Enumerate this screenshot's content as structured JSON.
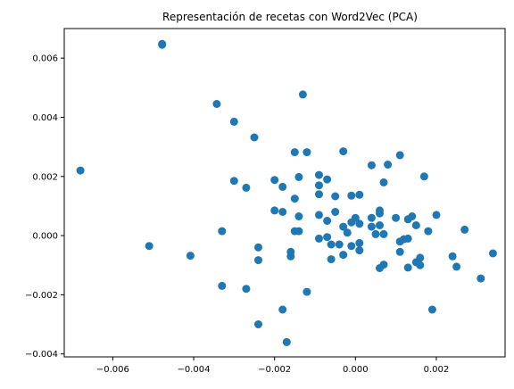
{
  "chart_data": {
    "type": "scatter",
    "title": "Representación de recetas con Word2Vec (PCA)",
    "xlabel": "",
    "ylabel": "",
    "xlim": [
      -0.0072,
      0.0037
    ],
    "ylim": [
      -0.0041,
      0.007
    ],
    "xticks": [
      -0.006,
      -0.004,
      -0.002,
      0.0,
      0.002
    ],
    "xtick_labels": [
      "−0.006",
      "−0.004",
      "−0.002",
      "0.000",
      "0.002"
    ],
    "yticks": [
      -0.004,
      -0.002,
      0.0,
      0.002,
      0.004,
      0.006
    ],
    "ytick_labels": [
      "−0.004",
      "−0.002",
      "0.000",
      "0.002",
      "0.004",
      "0.006"
    ],
    "grid": false,
    "marker_color": "#1f77b4",
    "points": [
      [
        -0.00478,
        0.00648
      ],
      [
        -0.00478,
        0.00645
      ],
      [
        -0.0068,
        0.0022
      ],
      [
        -0.0051,
        -0.00035
      ],
      [
        -0.00408,
        -0.00068
      ],
      [
        -0.00343,
        0.00445
      ],
      [
        -0.003,
        0.00385
      ],
      [
        -0.0025,
        0.00332
      ],
      [
        -0.0013,
        0.00477
      ],
      [
        -0.0003,
        0.00285
      ],
      [
        -0.0033,
        0.00015
      ],
      [
        -0.0033,
        -0.0017
      ],
      [
        -0.003,
        0.00185
      ],
      [
        -0.0027,
        0.00162
      ],
      [
        -0.0027,
        -0.0018
      ],
      [
        -0.0024,
        -0.0004
      ],
      [
        -0.0024,
        -0.00083
      ],
      [
        -0.0024,
        -0.003
      ],
      [
        -0.002,
        0.00188
      ],
      [
        -0.002,
        0.00085
      ],
      [
        -0.0018,
        0.00165
      ],
      [
        -0.0018,
        0.0008
      ],
      [
        -0.0018,
        -0.0025
      ],
      [
        -0.0017,
        -0.0036
      ],
      [
        -0.0016,
        -0.0007
      ],
      [
        -0.0016,
        -0.00055
      ],
      [
        -0.0015,
        0.00282
      ],
      [
        -0.0015,
        0.00125
      ],
      [
        -0.0015,
        0.00015
      ],
      [
        -0.0014,
        0.00198
      ],
      [
        -0.0014,
        0.00065
      ],
      [
        -0.0014,
        0.00015
      ],
      [
        -0.0012,
        0.00282
      ],
      [
        -0.0012,
        -0.0019
      ],
      [
        -0.0009,
        0.00205
      ],
      [
        -0.0009,
        0.0017
      ],
      [
        -0.0009,
        0.0014
      ],
      [
        -0.0009,
        0.0007
      ],
      [
        -0.0009,
        -0.0001
      ],
      [
        -0.0007,
        0.0019
      ],
      [
        -0.0007,
        0.0005
      ],
      [
        -0.0007,
        -5e-05
      ],
      [
        -0.0006,
        -0.0003
      ],
      [
        -0.0006,
        -0.0008
      ],
      [
        -0.0005,
        0.00133
      ],
      [
        -0.0005,
        0.0008
      ],
      [
        -0.0004,
        -0.0003
      ],
      [
        -0.0003,
        0.0003
      ],
      [
        -0.0003,
        -0.00065
      ],
      [
        -0.0002,
        0.0001
      ],
      [
        -0.0001,
        0.00135
      ],
      [
        -0.0001,
        0.00045
      ],
      [
        -0.0001,
        -0.00035
      ],
      [
        0.0,
        0.0006
      ],
      [
        0.0001,
        0.00138
      ],
      [
        0.0001,
        0.0004
      ],
      [
        0.0001,
        -0.00025
      ],
      [
        0.0001,
        -0.0005
      ],
      [
        0.0004,
        0.00238
      ],
      [
        0.0004,
        0.0006
      ],
      [
        0.0004,
        0.0003
      ],
      [
        0.0005,
        5e-05
      ],
      [
        0.0006,
        0.00085
      ],
      [
        0.0006,
        0.00075
      ],
      [
        0.0006,
        0.00035
      ],
      [
        0.0006,
        -0.0011
      ],
      [
        0.0007,
        0.0018
      ],
      [
        0.0007,
        5e-05
      ],
      [
        0.0007,
        -0.00098
      ],
      [
        0.0008,
        0.0024
      ],
      [
        0.001,
        0.0006
      ],
      [
        0.0011,
        0.00272
      ],
      [
        0.0011,
        -0.00055
      ],
      [
        0.0011,
        -0.0002
      ],
      [
        0.0012,
        -0.00012
      ],
      [
        0.0013,
        0.00055
      ],
      [
        0.0013,
        -0.0001
      ],
      [
        0.0013,
        -0.00108
      ],
      [
        0.0014,
        0.00065
      ],
      [
        0.0015,
        0.00035
      ],
      [
        0.0015,
        -0.0009
      ],
      [
        0.0016,
        -0.00075
      ],
      [
        0.0016,
        -0.001
      ],
      [
        0.0017,
        0.002
      ],
      [
        0.0018,
        0.00015
      ],
      [
        0.0019,
        -0.0025
      ],
      [
        0.002,
        0.0007
      ],
      [
        0.0024,
        -0.0007
      ],
      [
        0.0025,
        -0.00105
      ],
      [
        0.0027,
        0.0002
      ],
      [
        0.0031,
        -0.00145
      ],
      [
        0.0034,
        -0.0006
      ]
    ]
  }
}
